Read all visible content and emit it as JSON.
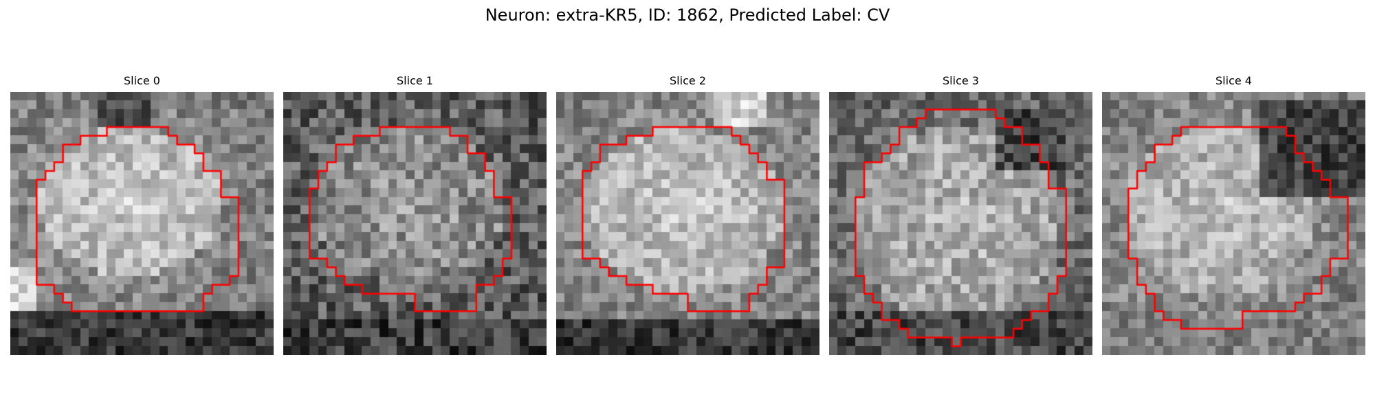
{
  "figure": {
    "title": "Neuron: extra-KR5, ID: 1862, Predicted Label: CV",
    "contour_color": "#ff0000"
  },
  "panels": [
    {
      "title": "Slice 0"
    },
    {
      "title": "Slice 1"
    },
    {
      "title": "Slice 2"
    },
    {
      "title": "Slice 3"
    },
    {
      "title": "Slice 4"
    }
  ]
}
